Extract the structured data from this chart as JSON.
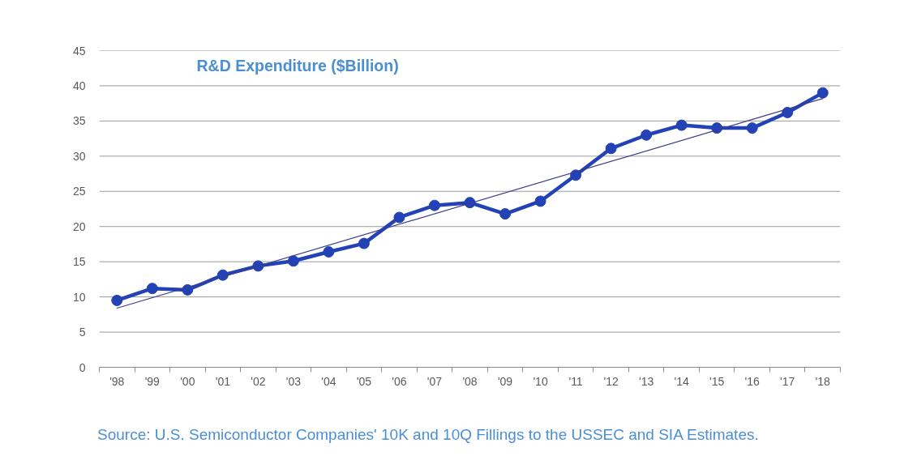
{
  "chart_data": {
    "type": "line",
    "title": "R&D Expenditure ($Billion)",
    "annotations": [
      "Source: U.S. Semiconductor Companies' 10K and 10Q Fillings to the USSEC and SIA Estimates."
    ],
    "x": [
      1998,
      1999,
      2000,
      2001,
      2002,
      2003,
      2004,
      2005,
      2006,
      2007,
      2008,
      2009,
      2010,
      2011,
      2012,
      2013,
      2014,
      2015,
      2016,
      2017,
      2018
    ],
    "series": [
      {
        "color": "#2342b5",
        "values": [
          9.5,
          11.2,
          11.0,
          13.1,
          14.4,
          15.1,
          16.4,
          17.6,
          21.3,
          23.0,
          23.4,
          21.8,
          23.6,
          27.3,
          31.1,
          33.0,
          34.4,
          34.0,
          34.0,
          36.2,
          39.0
        ]
      },
      {
        "color": "#3b3d8e",
        "x": [
          1998,
          2018
        ],
        "values": [
          8.4,
          38.2
        ],
        "marker": "none"
      }
    ],
    "xlim": [
      1997.5,
      2018.5
    ],
    "xticks": [
      {
        "value": 1997.5,
        "label": null
      },
      {
        "value": 1998,
        "label": "'98"
      },
      {
        "value": 1998.5,
        "label": null
      },
      {
        "value": 1999,
        "label": "'99"
      },
      {
        "value": 1999.5,
        "label": null
      },
      {
        "value": 2000,
        "label": "'00"
      },
      {
        "value": 2000.5,
        "label": null
      },
      {
        "value": 2001,
        "label": "'01"
      },
      {
        "value": 2001.5,
        "label": null
      },
      {
        "value": 2002,
        "label": "'02"
      },
      {
        "value": 2002.5,
        "label": null
      },
      {
        "value": 2003,
        "label": "'03"
      },
      {
        "value": 2003.5,
        "label": null
      },
      {
        "value": 2004,
        "label": "'04"
      },
      {
        "value": 2004.5,
        "label": null
      },
      {
        "value": 2005,
        "label": "'05"
      },
      {
        "value": 2005.5,
        "label": null
      },
      {
        "value": 2006,
        "label": "'06"
      },
      {
        "value": 2006.5,
        "label": null
      },
      {
        "value": 2007,
        "label": "'07"
      },
      {
        "value": 2007.5,
        "label": null
      },
      {
        "value": 2008,
        "label": "'08"
      },
      {
        "value": 2008.5,
        "label": null
      },
      {
        "value": 2009,
        "label": "'09"
      },
      {
        "value": 2009.5,
        "label": null
      },
      {
        "value": 2010,
        "label": "'10"
      },
      {
        "value": 2010.5,
        "label": null
      },
      {
        "value": 2011,
        "label": "'11"
      },
      {
        "value": 2011.5,
        "label": null
      },
      {
        "value": 2012,
        "label": "'12"
      },
      {
        "value": 2012.5,
        "label": null
      },
      {
        "value": 2013,
        "label": "'13"
      },
      {
        "value": 2013.5,
        "label": null
      },
      {
        "value": 2014,
        "label": "'14"
      },
      {
        "value": 2014.5,
        "label": null
      },
      {
        "value": 2015,
        "label": "'15"
      },
      {
        "value": 2015.5,
        "label": null
      },
      {
        "value": 2016,
        "label": "'16"
      },
      {
        "value": 2016.5,
        "label": null
      },
      {
        "value": 2017,
        "label": "'17"
      },
      {
        "value": 2017.5,
        "label": null
      },
      {
        "value": 2018,
        "label": "'18"
      },
      {
        "value": 2018.5,
        "label": null
      }
    ],
    "ylim": [
      0,
      45
    ],
    "yticks": [
      0,
      5,
      10,
      15,
      20,
      25,
      30,
      35,
      40,
      45
    ],
    "grid": "y",
    "marker": "circle",
    "line_style": "solid"
  }
}
